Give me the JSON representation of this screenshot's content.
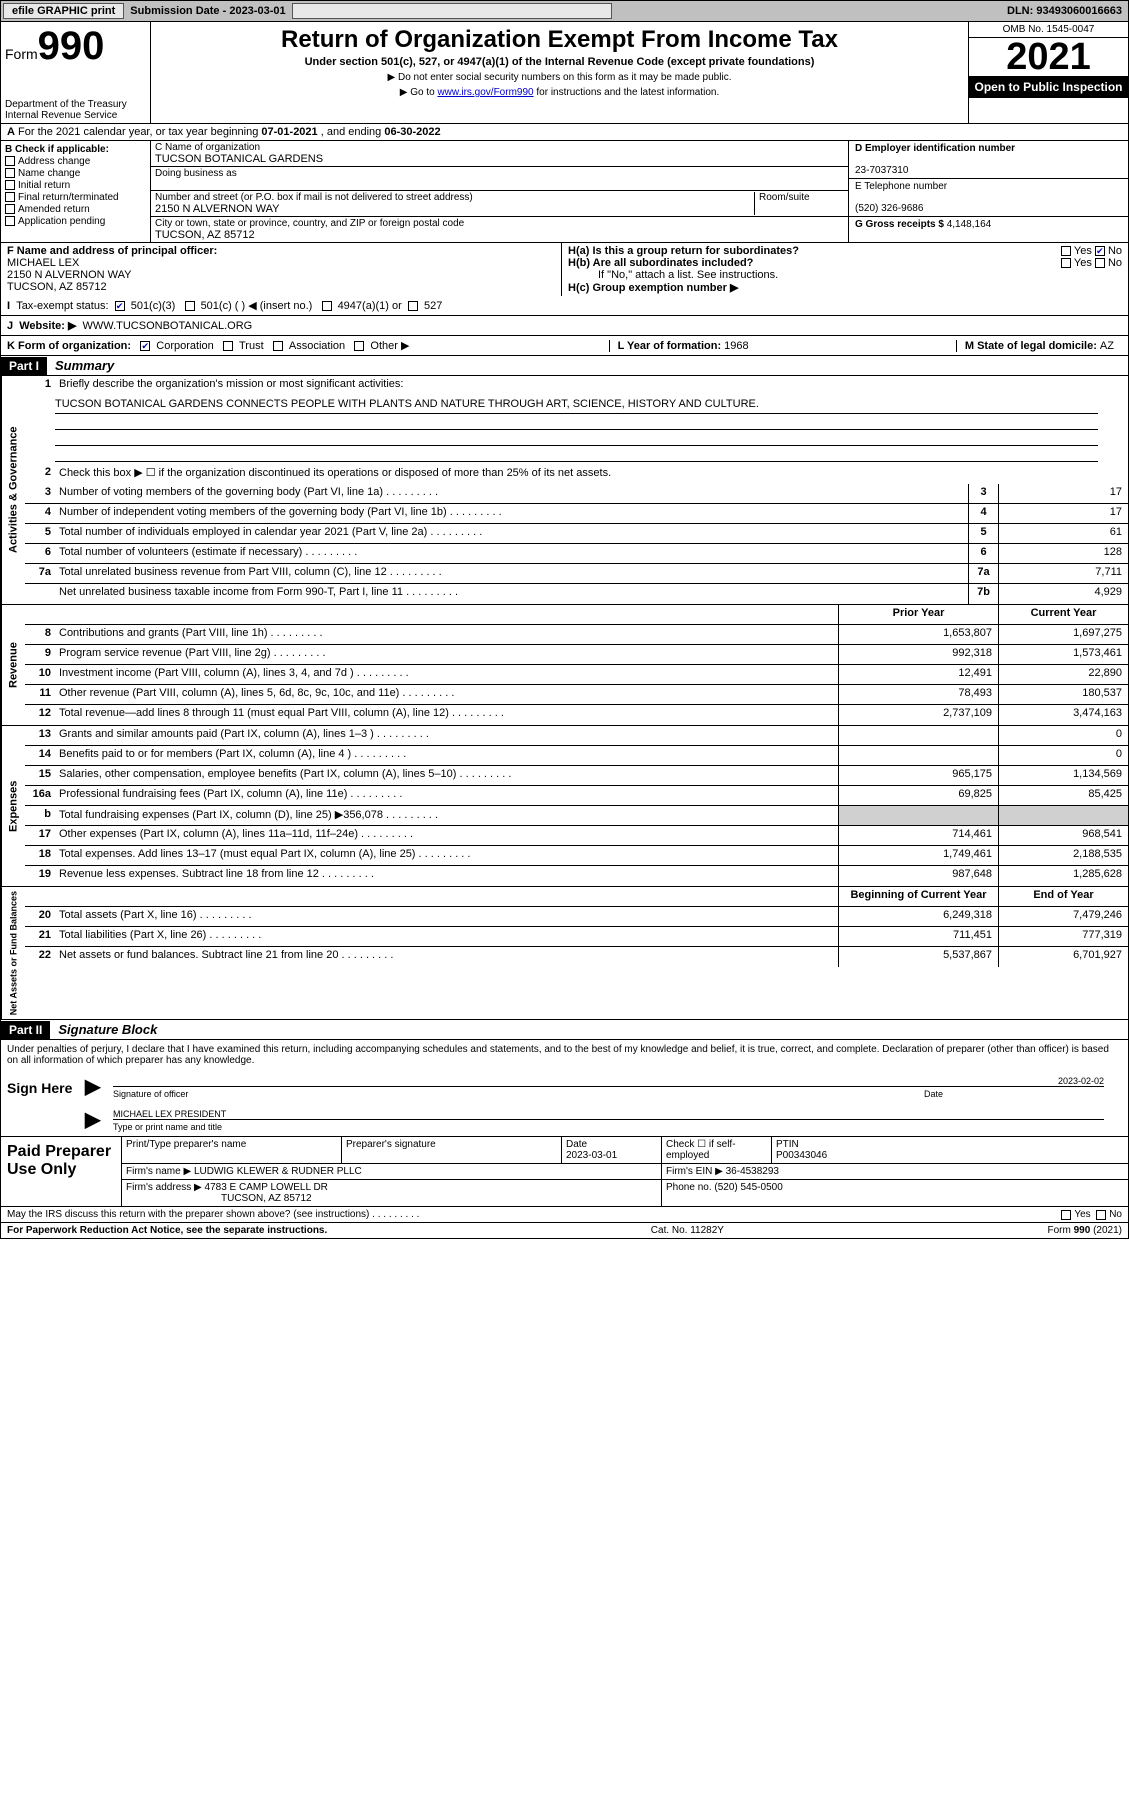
{
  "topbar": {
    "efile": "efile GRAPHIC print",
    "submission_label": "Submission Date - ",
    "submission_date": "2023-03-01",
    "dln_label": "DLN: ",
    "dln": "93493060016663"
  },
  "header": {
    "form_label": "Form",
    "form_num": "990",
    "dept": "Department of the Treasury",
    "irs": "Internal Revenue Service",
    "title": "Return of Organization Exempt From Income Tax",
    "subtitle": "Under section 501(c), 527, or 4947(a)(1) of the Internal Revenue Code (except private foundations)",
    "note1": "▶ Do not enter social security numbers on this form as it may be made public.",
    "note2_pre": "▶ Go to ",
    "note2_link": "www.irs.gov/Form990",
    "note2_post": " for instructions and the latest information.",
    "omb": "OMB No. 1545-0047",
    "year": "2021",
    "inspect": "Open to Public Inspection"
  },
  "rowA": {
    "text_pre": "For the 2021 calendar year, or tax year beginning ",
    "begin": "07-01-2021",
    "text_mid": " , and ending ",
    "end": "06-30-2022"
  },
  "boxB": {
    "title": "B Check if applicable:",
    "items": [
      "Address change",
      "Name change",
      "Initial return",
      "Final return/terminated",
      "Amended return",
      "Application pending"
    ]
  },
  "boxC": {
    "name_label": "C Name of organization",
    "name": "TUCSON BOTANICAL GARDENS",
    "dba_label": "Doing business as",
    "dba": "",
    "addr_label": "Number and street (or P.O. box if mail is not delivered to street address)",
    "room_label": "Room/suite",
    "addr": "2150 N ALVERNON WAY",
    "city_label": "City or town, state or province, country, and ZIP or foreign postal code",
    "city": "TUCSON, AZ  85712"
  },
  "boxD": {
    "label": "D Employer identification number",
    "val": "23-7037310"
  },
  "boxE": {
    "label": "E Telephone number",
    "val": "(520) 326-9686"
  },
  "boxG": {
    "label": "G Gross receipts $ ",
    "val": "4,148,164"
  },
  "boxF": {
    "label": "F Name and address of principal officer:",
    "name": "MICHAEL LEX",
    "addr1": "2150 N ALVERNON WAY",
    "addr2": "TUCSON, AZ  85712"
  },
  "boxH": {
    "ha": "H(a)  Is this a group return for subordinates?",
    "hb": "H(b)  Are all subordinates included?",
    "hb_note": "If \"No,\" attach a list. See instructions.",
    "hc": "H(c)  Group exemption number ▶",
    "yes": "Yes",
    "no": "No"
  },
  "rowI": {
    "label": "Tax-exempt status:",
    "opts": [
      "501(c)(3)",
      "501(c) (  ) ◀ (insert no.)",
      "4947(a)(1) or",
      "527"
    ]
  },
  "rowJ": {
    "label": "Website: ▶",
    "val": "WWW.TUCSONBOTANICAL.ORG"
  },
  "rowK": {
    "label": "K Form of organization:",
    "opts": [
      "Corporation",
      "Trust",
      "Association",
      "Other ▶"
    ],
    "l_label": "L Year of formation: ",
    "l_val": "1968",
    "m_label": "M State of legal domicile: ",
    "m_val": "AZ"
  },
  "part1": {
    "hdr": "Part I",
    "title": "Summary"
  },
  "summary": {
    "tabs": [
      "Activities & Governance",
      "Revenue",
      "Expenses",
      "Net Assets or Fund Balances"
    ],
    "q1_label": "Briefly describe the organization's mission or most significant activities:",
    "q1_val": "TUCSON BOTANICAL GARDENS CONNECTS PEOPLE WITH PLANTS AND NATURE THROUGH ART, SCIENCE, HISTORY AND CULTURE.",
    "q2": "Check this box ▶ ☐  if the organization discontinued its operations or disposed of more than 25% of its net assets.",
    "lines_gov": [
      {
        "n": "3",
        "t": "Number of voting members of the governing body (Part VI, line 1a)",
        "c": "3",
        "v": "17"
      },
      {
        "n": "4",
        "t": "Number of independent voting members of the governing body (Part VI, line 1b)",
        "c": "4",
        "v": "17"
      },
      {
        "n": "5",
        "t": "Total number of individuals employed in calendar year 2021 (Part V, line 2a)",
        "c": "5",
        "v": "61"
      },
      {
        "n": "6",
        "t": "Total number of volunteers (estimate if necessary)",
        "c": "6",
        "v": "128"
      },
      {
        "n": "7a",
        "t": "Total unrelated business revenue from Part VIII, column (C), line 12",
        "c": "7a",
        "v": "7,711"
      },
      {
        "n": "",
        "t": "Net unrelated business taxable income from Form 990-T, Part I, line 11",
        "c": "7b",
        "v": "4,929"
      }
    ],
    "col_hdrs": {
      "prior": "Prior Year",
      "current": "Current Year",
      "boy": "Beginning of Current Year",
      "eoy": "End of Year"
    },
    "lines_rev": [
      {
        "n": "8",
        "t": "Contributions and grants (Part VIII, line 1h)",
        "p": "1,653,807",
        "c": "1,697,275"
      },
      {
        "n": "9",
        "t": "Program service revenue (Part VIII, line 2g)",
        "p": "992,318",
        "c": "1,573,461"
      },
      {
        "n": "10",
        "t": "Investment income (Part VIII, column (A), lines 3, 4, and 7d )",
        "p": "12,491",
        "c": "22,890"
      },
      {
        "n": "11",
        "t": "Other revenue (Part VIII, column (A), lines 5, 6d, 8c, 9c, 10c, and 11e)",
        "p": "78,493",
        "c": "180,537"
      },
      {
        "n": "12",
        "t": "Total revenue—add lines 8 through 11 (must equal Part VIII, column (A), line 12)",
        "p": "2,737,109",
        "c": "3,474,163"
      }
    ],
    "lines_exp": [
      {
        "n": "13",
        "t": "Grants and similar amounts paid (Part IX, column (A), lines 1–3 )",
        "p": "",
        "c": "0"
      },
      {
        "n": "14",
        "t": "Benefits paid to or for members (Part IX, column (A), line 4 )",
        "p": "",
        "c": "0"
      },
      {
        "n": "15",
        "t": "Salaries, other compensation, employee benefits (Part IX, column (A), lines 5–10)",
        "p": "965,175",
        "c": "1,134,569"
      },
      {
        "n": "16a",
        "t": "Professional fundraising fees (Part IX, column (A), line 11e)",
        "p": "69,825",
        "c": "85,425"
      },
      {
        "n": "b",
        "t": "Total fundraising expenses (Part IX, column (D), line 25) ▶356,078",
        "p": "",
        "c": "",
        "shade": true
      },
      {
        "n": "17",
        "t": "Other expenses (Part IX, column (A), lines 11a–11d, 11f–24e)",
        "p": "714,461",
        "c": "968,541"
      },
      {
        "n": "18",
        "t": "Total expenses. Add lines 13–17 (must equal Part IX, column (A), line 25)",
        "p": "1,749,461",
        "c": "2,188,535"
      },
      {
        "n": "19",
        "t": "Revenue less expenses. Subtract line 18 from line 12",
        "p": "987,648",
        "c": "1,285,628"
      }
    ],
    "lines_net": [
      {
        "n": "20",
        "t": "Total assets (Part X, line 16)",
        "p": "6,249,318",
        "c": "7,479,246"
      },
      {
        "n": "21",
        "t": "Total liabilities (Part X, line 26)",
        "p": "711,451",
        "c": "777,319"
      },
      {
        "n": "22",
        "t": "Net assets or fund balances. Subtract line 21 from line 20",
        "p": "5,537,867",
        "c": "6,701,927"
      }
    ]
  },
  "part2": {
    "hdr": "Part II",
    "title": "Signature Block"
  },
  "sig": {
    "decl": "Under penalties of perjury, I declare that I have examined this return, including accompanying schedules and statements, and to the best of my knowledge and belief, it is true, correct, and complete. Declaration of preparer (other than officer) is based on all information of which preparer has any knowledge.",
    "sign_here": "Sign Here",
    "officer_sig": "Signature of officer",
    "date_label": "Date",
    "date": "2023-02-02",
    "name_title": "MICHAEL LEX PRESIDENT",
    "name_title_label": "Type or print name and title"
  },
  "prep": {
    "title": "Paid Preparer Use Only",
    "h1": "Print/Type preparer's name",
    "h2": "Preparer's signature",
    "h3": "Date",
    "h3v": "2023-03-01",
    "h4": "Check ☐ if self-employed",
    "h5": "PTIN",
    "h5v": "P00343046",
    "firm_label": "Firm's name    ▶ ",
    "firm": "LUDWIG KLEWER & RUDNER PLLC",
    "ein_label": "Firm's EIN ▶ ",
    "ein": "36-4538293",
    "addr_label": "Firm's address ▶ ",
    "addr1": "4783 E CAMP LOWELL DR",
    "addr2": "TUCSON, AZ  85712",
    "phone_label": "Phone no. ",
    "phone": "(520) 545-0500"
  },
  "discuss": {
    "q": "May the IRS discuss this return with the preparer shown above? (see instructions)",
    "yes": "Yes",
    "no": "No"
  },
  "footer": {
    "left": "For Paperwork Reduction Act Notice, see the separate instructions.",
    "mid": "Cat. No. 11282Y",
    "right": "Form 990 (2021)"
  }
}
